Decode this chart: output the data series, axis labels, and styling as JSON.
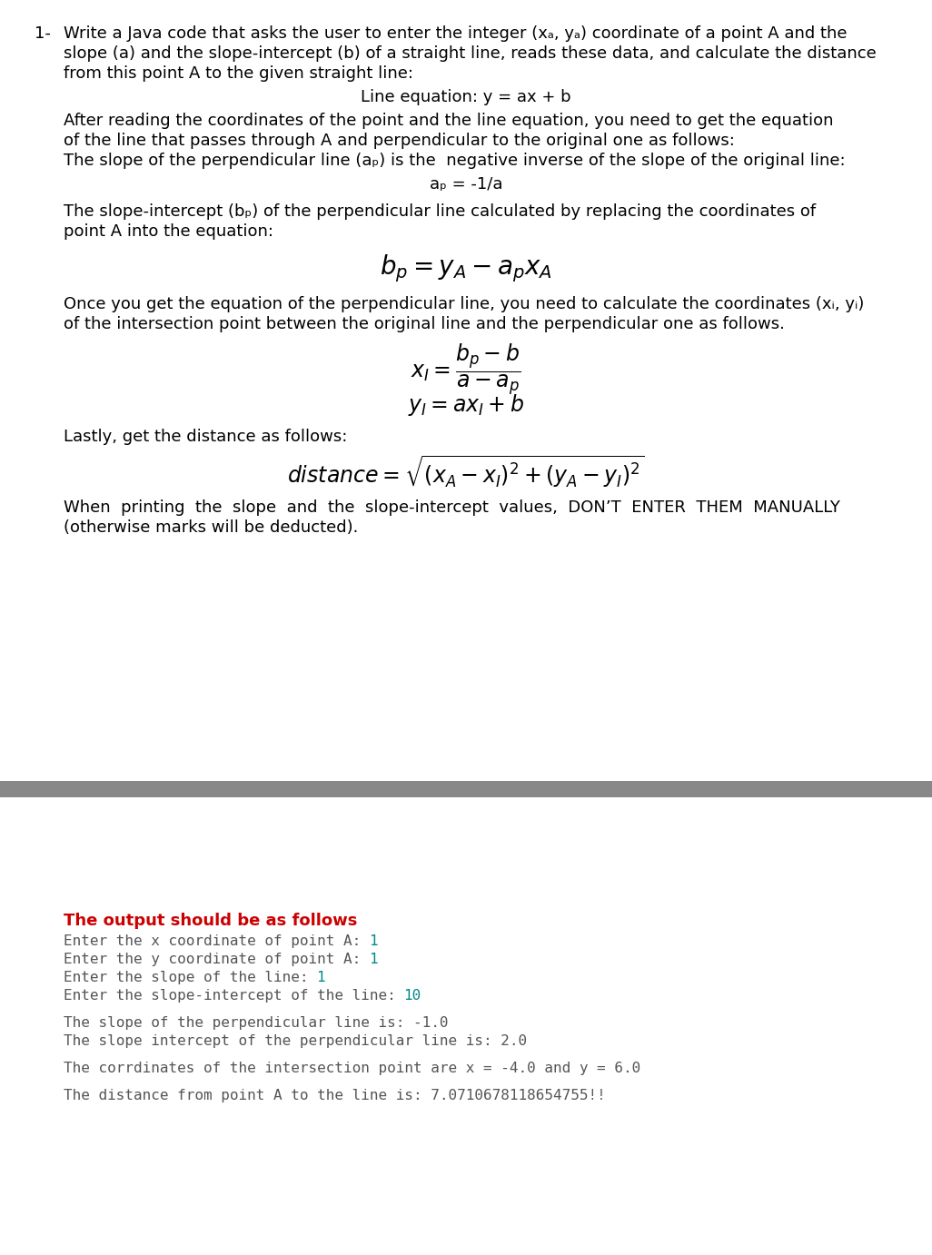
{
  "bg_color": "#ffffff",
  "separator_color": "#888888",
  "body_text_color": "#000000",
  "body_font_size": 13.0,
  "mono_font_size": 11.5,
  "red_color": "#cc0000",
  "teal_color": "#008888",
  "gray_mono_color": "#555555",
  "number_label": "1-",
  "para1": [
    "Write a Java code that asks the user to enter the integer (xₐ, yₐ) coordinate of a point A and the",
    "slope (a) and the slope-intercept (b) of a straight line, reads these data, and calculate the distance",
    "from this point A to the given straight line:"
  ],
  "line_eq": "Line equation: y = ax + b",
  "para2": [
    "After reading the coordinates of the point and the line equation, you need to get the equation",
    "of the line that passes through A and perpendicular to the original one as follows:",
    "The slope of the perpendicular line (aₚ) is the  negative inverse of the slope of the original line:"
  ],
  "ap_eq": "aₚ = -1/a",
  "para3": [
    "The slope-intercept (bₚ) of the perpendicular line calculated by replacing the coordinates of",
    "point A into the equation:"
  ],
  "para4": [
    "Once you get the equation of the perpendicular line, you need to calculate the coordinates (xᵢ, yᵢ)",
    "of the intersection point between the original line and the perpendicular one as follows."
  ],
  "lastly": "Lastly, get the distance as follows:",
  "when": [
    "When  printing  the  slope  and  the  slope-intercept  values,  DON’T  ENTER  THEM  MANUALLY",
    "(otherwise marks will be deducted)."
  ],
  "output_header": "The output should be as follows",
  "output_prompts": [
    {
      "prefix": "Enter the x coordinate of point A: ",
      "suffix": "1"
    },
    {
      "prefix": "Enter the y coordinate of point A: ",
      "suffix": "1"
    },
    {
      "prefix": "Enter the slope of the line: ",
      "suffix": "1"
    },
    {
      "prefix": "Enter the slope-intercept of the line: ",
      "suffix": "10"
    }
  ],
  "output_results": [
    "The slope of the perpendicular line is: -1.0",
    "The slope intercept of the perpendicular line is: 2.0"
  ],
  "output_coord": "The corrdinates of the intersection point are x = -4.0 and y = 6.0",
  "output_dist": "The distance from point A to the line is: 7.0710678118654755!!"
}
